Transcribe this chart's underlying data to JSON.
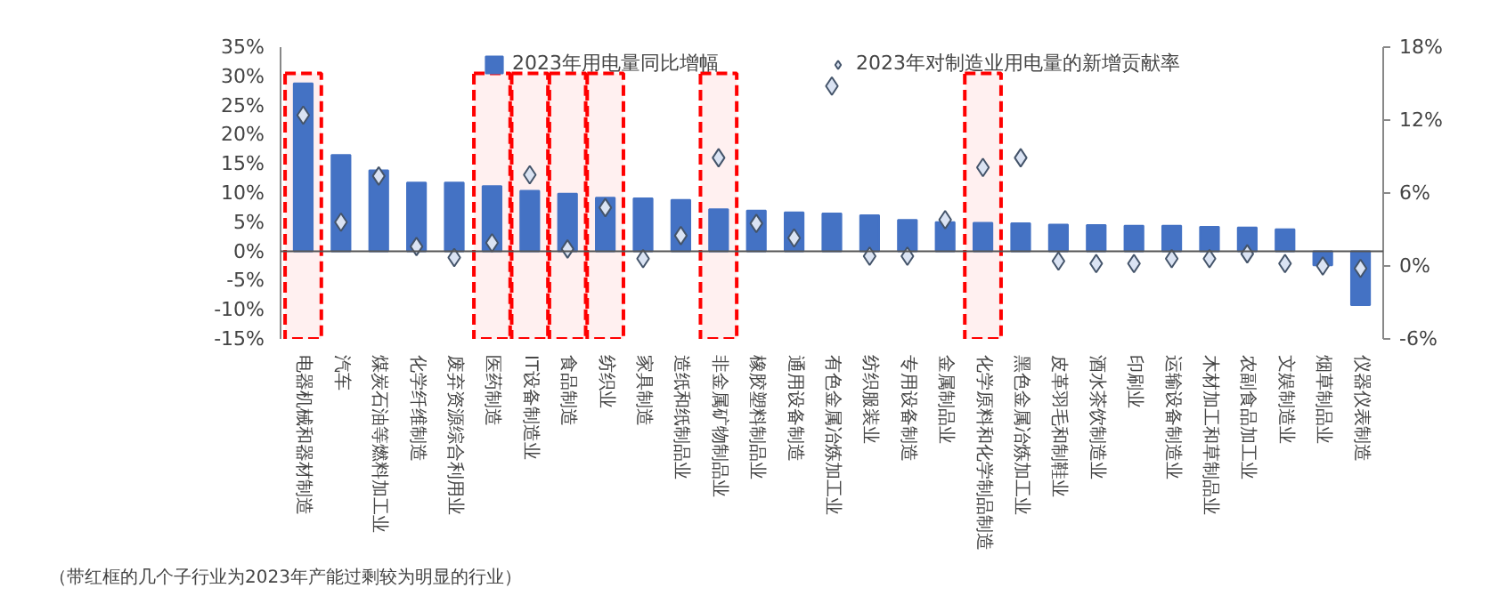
{
  "chart_data": {
    "type": "bar",
    "categories": [
      "电器机械和器材制造",
      "汽车",
      "煤炭石油等燃料加工业",
      "化学纤维制造",
      "废弃资源综合利用业",
      "医药制造",
      "IT设备制造业",
      "食品制造",
      "纺织业",
      "家具制造",
      "造纸和纸制品业",
      "非金属矿物制品业",
      "橡胶塑料制品业",
      "通用设备制造",
      "有色金属冶炼加工业",
      "纺织服装业",
      "专用设备制造",
      "金属制品业",
      "化学原料和化学制品制造",
      "黑色金属冶炼加工业",
      "皮革羽毛和制鞋业",
      "酒水茶饮制造业",
      "印刷业",
      "运输设备制造业",
      "木材加工和草制品业",
      "农副食品加工业",
      "文娱制造业",
      "烟草制品业",
      "仪器仪表制造"
    ],
    "series": [
      {
        "name": "2023年用电量同比增幅",
        "color": "#4472c4",
        "values": [
          28.8,
          16.5,
          13.9,
          11.8,
          11.8,
          11.2,
          10.4,
          9.9,
          9.2,
          9.1,
          8.8,
          7.2,
          7.0,
          6.7,
          6.5,
          6.2,
          5.4,
          5.0,
          4.9,
          4.8,
          4.6,
          4.5,
          4.4,
          4.4,
          4.2,
          4.1,
          3.8,
          -2.4,
          -9.2
        ]
      },
      {
        "name": "2023年对制造业用电量的新增贡献率",
        "type": "scatter",
        "axis": "y2",
        "marker": "diamond",
        "color": "#dae3f3",
        "values": [
          12.4,
          3.6,
          7.4,
          1.6,
          0.7,
          1.9,
          7.5,
          1.4,
          4.8,
          0.6,
          2.5,
          8.9,
          3.5,
          2.3,
          14.8,
          0.8,
          0.8,
          3.8,
          8.1,
          8.9,
          0.4,
          0.2,
          0.2,
          0.6,
          0.6,
          1.0,
          0.2,
          0.0,
          -0.2
        ]
      }
    ],
    "ylim": [
      -15,
      35
    ],
    "yticks": [
      {
        "value": -15,
        "label": "-15%"
      },
      {
        "value": -10,
        "label": "-10%"
      },
      {
        "value": -5,
        "label": "-5%"
      },
      {
        "value": 0,
        "label": "0%"
      },
      {
        "value": 5,
        "label": "5%"
      },
      {
        "value": 10,
        "label": "10%"
      },
      {
        "value": 15,
        "label": "15%"
      },
      {
        "value": 20,
        "label": "20%"
      },
      {
        "value": 25,
        "label": "25%"
      },
      {
        "value": 30,
        "label": "30%"
      },
      {
        "value": 35,
        "label": "35%"
      }
    ],
    "y2lim": [
      -6,
      18
    ],
    "y2ticks": [
      {
        "value": -6,
        "label": "-6%"
      },
      {
        "value": 0,
        "label": "0%"
      },
      {
        "value": 6,
        "label": "6%"
      },
      {
        "value": 12,
        "label": "12%"
      },
      {
        "value": 18,
        "label": "18%"
      }
    ],
    "bands": [
      {
        "axis": "x",
        "from": "电器机械和器材制造",
        "to": "电器机械和器材制造",
        "color": "#ff0000"
      },
      {
        "axis": "x",
        "from": "医药制造",
        "to": "医药制造",
        "color": "#ff0000"
      },
      {
        "axis": "x",
        "from": "IT设备制造业",
        "to": "IT设备制造业",
        "color": "#ff0000"
      },
      {
        "axis": "x",
        "from": "食品制造",
        "to": "食品制造",
        "color": "#ff0000"
      },
      {
        "axis": "x",
        "from": "纺织业",
        "to": "纺织业",
        "color": "#ff0000"
      },
      {
        "axis": "x",
        "from": "非金属矿物制品业",
        "to": "非金属矿物制品业",
        "color": "#ff0000"
      },
      {
        "axis": "x",
        "from": "化学原料和化学制品制造",
        "to": "化学原料和化学制品制造",
        "color": "#ff0000"
      }
    ],
    "ref_lines": [
      {
        "axis": "y",
        "value": 0,
        "color": "#555555"
      }
    ],
    "annotations": [
      "（带红框的几个子行业为2023年产能过剩较为明显的行业）"
    ],
    "legend": "top",
    "grid": false
  }
}
